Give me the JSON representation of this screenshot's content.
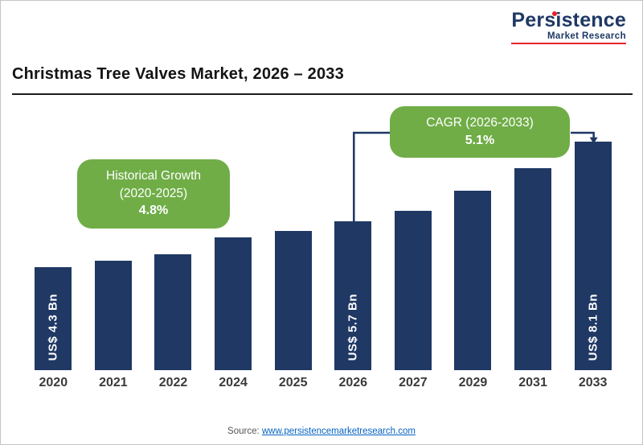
{
  "logo": {
    "name": "Persistence",
    "subtitle": "Market Research"
  },
  "title": "Christmas Tree Valves Market, 2026 – 2033",
  "callouts": {
    "historical": {
      "line1": "Historical Growth",
      "line2": "(2020-2025)",
      "value": "4.8%"
    },
    "cagr": {
      "line1": "CAGR (2026-2033)",
      "value": "5.1%"
    }
  },
  "footer": {
    "source_label": "Source: ",
    "source_link": "www.persistencemarketresearch.com"
  },
  "colors": {
    "bar": "#1f3864",
    "callout_green": "#70ad47",
    "accent_red": "#e8232a",
    "connector": "#1f3864"
  },
  "chart_data": {
    "type": "bar",
    "title": "Christmas Tree Valves Market, 2026 – 2033",
    "categories": [
      "2020",
      "2021",
      "2022",
      "2024",
      "2025",
      "2026",
      "2027",
      "2029",
      "2031",
      "2033"
    ],
    "values": [
      4.3,
      4.5,
      4.7,
      5.2,
      5.4,
      5.7,
      6.0,
      6.6,
      7.3,
      8.1
    ],
    "bar_labels": [
      "US$ 4.3 Bn",
      "",
      "",
      "",
      "",
      "US$ 5.7 Bn",
      "",
      "",
      "",
      "US$ 8.1 Bn"
    ],
    "unit": "US$ Bn",
    "xlabel": "",
    "ylabel": "",
    "ylim": [
      1.2,
      8.6
    ],
    "grid": false,
    "legend": "none",
    "annotations": [
      {
        "text": "Historical Growth (2020-2025) 4.8%",
        "applies_to": "2020-2025"
      },
      {
        "text": "CAGR (2026-2033) 5.1%",
        "applies_to": "2026-2033",
        "arrow_from": "2026",
        "arrow_to": "2033"
      }
    ]
  }
}
